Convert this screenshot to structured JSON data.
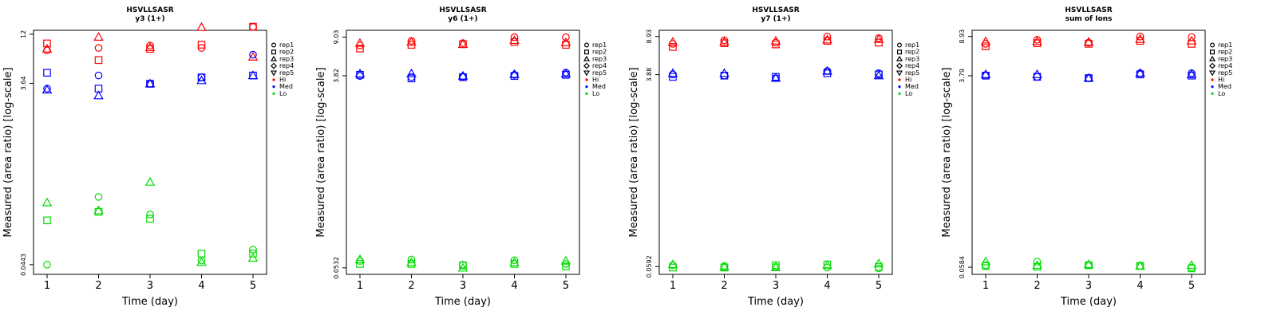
{
  "chart_data": [
    {
      "type": "scatter",
      "title": "HSVLLSASR",
      "subtitle": "y3 (1+)",
      "xlabel": "Time (day)",
      "ylabel": "Measured (area ratio) [log-scale]",
      "log_y": true,
      "x_ticks": [
        1,
        2,
        3,
        4,
        5
      ],
      "y_ticks": [
        "0.0443",
        "3.64",
        "12"
      ],
      "ylim": [
        0.035,
        13.2
      ],
      "series": [
        {
          "name": "rep1",
          "group": "Hi",
          "values": [
            8.1,
            8.6,
            9.1,
            8.6,
            14.3
          ]
        },
        {
          "name": "rep2",
          "group": "Hi",
          "values": [
            9.6,
            6.4,
            8.4,
            9.3,
            14.4
          ]
        },
        {
          "name": "rep3",
          "group": "Hi",
          "values": [
            8.4,
            11.2,
            8.7,
            14.2,
            6.9
          ]
        },
        {
          "name": "rep1",
          "group": "Med",
          "values": [
            3.2,
            4.4,
            3.6,
            4.2,
            7.3
          ]
        },
        {
          "name": "rep2",
          "group": "Med",
          "values": [
            4.7,
            3.2,
            3.6,
            4.2,
            4.4
          ]
        },
        {
          "name": "rep3",
          "group": "Med",
          "values": [
            3.1,
            2.7,
            3.6,
            3.9,
            4.4
          ]
        },
        {
          "name": "rep1",
          "group": "Lo",
          "values": [
            0.0443,
            0.23,
            0.15,
            0.049,
            0.064
          ]
        },
        {
          "name": "rep2",
          "group": "Lo",
          "values": [
            0.13,
            0.16,
            0.135,
            0.058,
            0.058
          ]
        },
        {
          "name": "rep3",
          "group": "Lo",
          "values": [
            0.2,
            0.165,
            0.33,
            0.047,
            0.052
          ]
        }
      ]
    },
    {
      "type": "scatter",
      "title": "HSVLLSASR",
      "subtitle": "y6 (1+)",
      "xlabel": "Time (day)",
      "ylabel": "Measured (area ratio) [log-scale]",
      "log_y": true,
      "x_ticks": [
        1,
        2,
        3,
        4,
        5
      ],
      "y_ticks": [
        "0.0532",
        "3.82",
        "9.03"
      ],
      "ylim": [
        0.046,
        10.5
      ],
      "series": [
        {
          "name": "rep1",
          "group": "Hi",
          "values": [
            7.5,
            8.3,
            7.9,
            9.0,
            9.0
          ]
        },
        {
          "name": "rep2",
          "group": "Hi",
          "values": [
            7.0,
            7.6,
            7.7,
            8.1,
            7.6
          ]
        },
        {
          "name": "rep3",
          "group": "Hi",
          "values": [
            7.9,
            8.1,
            7.7,
            8.4,
            8.0
          ]
        },
        {
          "name": "rep1",
          "group": "Med",
          "values": [
            3.8,
            3.7,
            3.75,
            3.9,
            4.1
          ]
        },
        {
          "name": "rep2",
          "group": "Med",
          "values": [
            3.9,
            3.6,
            3.7,
            3.8,
            3.9
          ]
        },
        {
          "name": "rep3",
          "group": "Med",
          "values": [
            4.0,
            4.0,
            3.8,
            3.95,
            4.0
          ]
        },
        {
          "name": "rep1",
          "group": "Lo",
          "values": [
            0.062,
            0.064,
            0.057,
            0.063,
            0.058
          ]
        },
        {
          "name": "rep2",
          "group": "Lo",
          "values": [
            0.058,
            0.058,
            0.056,
            0.058,
            0.055
          ]
        },
        {
          "name": "rep3",
          "group": "Lo",
          "values": [
            0.064,
            0.06,
            0.053,
            0.06,
            0.062
          ]
        }
      ]
    },
    {
      "type": "scatter",
      "title": "HSVLLSASR",
      "subtitle": "y7 (1+)",
      "xlabel": "Time (day)",
      "ylabel": "Measured (area ratio) [log-scale]",
      "log_y": true,
      "x_ticks": [
        1,
        2,
        3,
        4,
        5
      ],
      "y_ticks": [
        "0.0592",
        "3.88",
        "8.93"
      ],
      "ylim": [
        0.05,
        10.2
      ],
      "series": [
        {
          "name": "rep1",
          "group": "Hi",
          "values": [
            7.6,
            8.2,
            7.8,
            8.9,
            8.6
          ]
        },
        {
          "name": "rep2",
          "group": "Hi",
          "values": [
            7.1,
            7.7,
            7.5,
            8.1,
            7.8
          ]
        },
        {
          "name": "rep3",
          "group": "Hi",
          "values": [
            7.9,
            7.9,
            8.1,
            8.3,
            8.4
          ]
        },
        {
          "name": "rep1",
          "group": "Med",
          "values": [
            3.9,
            3.8,
            3.6,
            4.2,
            4.0
          ]
        },
        {
          "name": "rep2",
          "group": "Med",
          "values": [
            3.7,
            3.8,
            3.7,
            4.0,
            3.9
          ]
        },
        {
          "name": "rep3",
          "group": "Med",
          "values": [
            4.0,
            4.0,
            3.6,
            4.2,
            3.8
          ]
        },
        {
          "name": "rep1",
          "group": "Lo",
          "values": [
            0.061,
            0.06,
            0.059,
            0.058,
            0.057
          ]
        },
        {
          "name": "rep2",
          "group": "Lo",
          "values": [
            0.058,
            0.058,
            0.061,
            0.062,
            0.059
          ]
        },
        {
          "name": "rep3",
          "group": "Lo",
          "values": [
            0.062,
            0.059,
            0.058,
            0.061,
            0.063
          ]
        }
      ]
    },
    {
      "type": "scatter",
      "title": "HSVLLSASR",
      "subtitle": "sum of Ions",
      "xlabel": "Time (day)",
      "ylabel": "Measured (area ratio) [log-scale]",
      "log_y": true,
      "x_ticks": [
        1,
        2,
        3,
        4,
        5
      ],
      "y_ticks": [
        "0.0584",
        "3.79",
        "8.93"
      ],
      "ylim": [
        0.05,
        10.2
      ],
      "series": [
        {
          "name": "rep1",
          "group": "Hi",
          "values": [
            7.6,
            8.3,
            7.8,
            8.9,
            8.8
          ]
        },
        {
          "name": "rep2",
          "group": "Hi",
          "values": [
            7.2,
            7.7,
            7.6,
            8.1,
            7.6
          ]
        },
        {
          "name": "rep3",
          "group": "Hi",
          "values": [
            8.0,
            8.0,
            7.9,
            8.4,
            8.1
          ]
        },
        {
          "name": "rep1",
          "group": "Med",
          "values": [
            3.8,
            3.7,
            3.6,
            4.0,
            4.0
          ]
        },
        {
          "name": "rep2",
          "group": "Med",
          "values": [
            3.8,
            3.7,
            3.6,
            3.9,
            3.8
          ]
        },
        {
          "name": "rep3",
          "group": "Med",
          "values": [
            3.9,
            3.9,
            3.6,
            4.0,
            3.9
          ]
        },
        {
          "name": "rep1",
          "group": "Lo",
          "values": [
            0.061,
            0.066,
            0.061,
            0.06,
            0.058
          ]
        },
        {
          "name": "rep2",
          "group": "Lo",
          "values": [
            0.06,
            0.059,
            0.061,
            0.06,
            0.057
          ]
        },
        {
          "name": "rep3",
          "group": "Lo",
          "values": [
            0.066,
            0.061,
            0.062,
            0.06,
            0.061
          ]
        }
      ]
    }
  ],
  "legend": {
    "placement": "right",
    "items": [
      {
        "label": "rep1",
        "symbol": "circle",
        "color": "#000000"
      },
      {
        "label": "rep2",
        "symbol": "square",
        "color": "#000000"
      },
      {
        "label": "rep3",
        "symbol": "triangle-up",
        "color": "#000000"
      },
      {
        "label": "rep4",
        "symbol": "diamond",
        "color": "#000000"
      },
      {
        "label": "rep5",
        "symbol": "triangle-down",
        "color": "#000000"
      },
      {
        "label": "Hi",
        "symbol": "dot",
        "color": "#ff0000"
      },
      {
        "label": "Med",
        "symbol": "dot",
        "color": "#0000ff"
      },
      {
        "label": "Lo",
        "symbol": "dot",
        "color": "#00dd00"
      }
    ]
  },
  "colors": {
    "Hi": "#ff0000",
    "Med": "#0000ff",
    "Lo": "#00dd00"
  },
  "shapes": {
    "rep1": "circle",
    "rep2": "square",
    "rep3": "triangle-up",
    "rep4": "diamond",
    "rep5": "triangle-down"
  }
}
